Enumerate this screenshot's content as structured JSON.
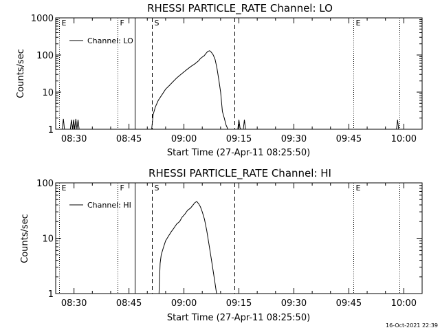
{
  "chart_data": [
    {
      "type": "line",
      "title": "RHESSI PARTICLE_RATE Channel: LO",
      "xlabel": "Start Time (27-Apr-11 08:25:50)",
      "ylabel": "Counts/sec",
      "yscale": "log",
      "ylim": [
        1,
        1000
      ],
      "xlim_minutes_from_0825": [
        0,
        100
      ],
      "x_ticks": [
        {
          "label": "08:30",
          "t": 5
        },
        {
          "label": "08:45",
          "t": 20
        },
        {
          "label": "09:00",
          "t": 35
        },
        {
          "label": "09:15",
          "t": 50
        },
        {
          "label": "09:30",
          "t": 65
        },
        {
          "label": "09:45",
          "t": 80
        },
        {
          "label": "10:00",
          "t": 95
        }
      ],
      "y_ticks": [
        {
          "label": "1",
          "v": 1
        },
        {
          "label": "10",
          "v": 10
        },
        {
          "label": "100",
          "v": 100
        },
        {
          "label": "1000",
          "v": 1000
        }
      ],
      "legend": {
        "label": "Channel: LO",
        "position": "top-left"
      },
      "markers": [
        {
          "label": "E",
          "t": 0.9,
          "style": "dotted"
        },
        {
          "label": "F",
          "t": 16.8,
          "style": "dotted"
        },
        {
          "label": "",
          "t": 21.5,
          "style": "solid"
        },
        {
          "label": "S",
          "t": 26.2,
          "style": "dashed"
        },
        {
          "label": "",
          "t": 48.8,
          "style": "dashed"
        },
        {
          "label": "E",
          "t": 81.2,
          "style": "dotted"
        },
        {
          "label": "",
          "t": 93.8,
          "style": "dotted"
        }
      ],
      "series": [
        {
          "name": "Channel: LO",
          "x": [
            26.2,
            26.6,
            27.2,
            28,
            29,
            30,
            31,
            32,
            33,
            34,
            35,
            36,
            37,
            38,
            39,
            39.5,
            40,
            40.5,
            41,
            41.5,
            42,
            42.5,
            43,
            43.5,
            44,
            44.5,
            45,
            45.5,
            46,
            46.5,
            47
          ],
          "y": [
            1,
            2.5,
            4,
            6,
            8.5,
            12,
            15,
            19,
            24,
            29,
            35,
            42,
            50,
            58,
            70,
            80,
            88,
            95,
            110,
            125,
            130,
            118,
            100,
            75,
            45,
            22,
            10,
            3,
            2,
            1.3,
            1
          ]
        },
        {
          "name": "noise",
          "x": [
            1.8,
            2.1,
            2.4,
            4.0,
            4.3,
            4.6,
            4.9,
            5.2,
            5.5,
            5.8,
            6.1,
            6.4,
            49.7,
            50.0,
            50.3,
            50.6,
            51.2,
            51.5,
            51.8,
            93.0,
            93.3,
            93.6
          ],
          "y": [
            1,
            1.9,
            1,
            1,
            1.8,
            1,
            1.8,
            1,
            1.9,
            1,
            1.8,
            1,
            1,
            1.8,
            1.1,
            1,
            1,
            1.8,
            1,
            1,
            1.8,
            1
          ]
        }
      ]
    },
    {
      "type": "line",
      "title": "RHESSI PARTICLE_RATE Channel: HI",
      "xlabel": "Start Time (27-Apr-11 08:25:50)",
      "ylabel": "Counts/sec",
      "yscale": "log",
      "ylim": [
        1,
        100
      ],
      "xlim_minutes_from_0825": [
        0,
        100
      ],
      "x_ticks": [
        {
          "label": "08:30",
          "t": 5
        },
        {
          "label": "08:45",
          "t": 20
        },
        {
          "label": "09:00",
          "t": 35
        },
        {
          "label": "09:15",
          "t": 50
        },
        {
          "label": "09:30",
          "t": 65
        },
        {
          "label": "09:45",
          "t": 80
        },
        {
          "label": "10:00",
          "t": 95
        }
      ],
      "y_ticks": [
        {
          "label": "1",
          "v": 1
        },
        {
          "label": "10",
          "v": 10
        },
        {
          "label": "100",
          "v": 100
        }
      ],
      "legend": {
        "label": "Channel: HI",
        "position": "top-left"
      },
      "markers": [
        {
          "label": "E",
          "t": 0.9,
          "style": "dotted"
        },
        {
          "label": "F",
          "t": 16.8,
          "style": "dotted"
        },
        {
          "label": "",
          "t": 21.5,
          "style": "solid"
        },
        {
          "label": "S",
          "t": 26.2,
          "style": "dashed"
        },
        {
          "label": "",
          "t": 48.8,
          "style": "dashed"
        },
        {
          "label": "E",
          "t": 81.2,
          "style": "dotted"
        },
        {
          "label": "",
          "t": 93.8,
          "style": "dotted"
        }
      ],
      "series": [
        {
          "name": "Channel: HI",
          "x": [
            28.2,
            28.5,
            28.8,
            29.3,
            30,
            30.8,
            31.5,
            32.2,
            33,
            33.8,
            34.5,
            35.2,
            36,
            36.8,
            37.5,
            38,
            38.5,
            39,
            39.5,
            40,
            40.6,
            41.2,
            41.8,
            42.4,
            43,
            43.5,
            43.9
          ],
          "y": [
            1,
            3.5,
            5,
            6.5,
            9,
            11,
            13,
            15,
            18,
            20,
            24,
            27,
            32,
            35,
            40,
            44,
            46,
            42,
            37,
            30,
            22,
            14,
            8,
            4.5,
            2.5,
            1.5,
            1
          ]
        }
      ]
    }
  ],
  "footer": {
    "timestamp": "16-Oct-2021 22:39"
  }
}
